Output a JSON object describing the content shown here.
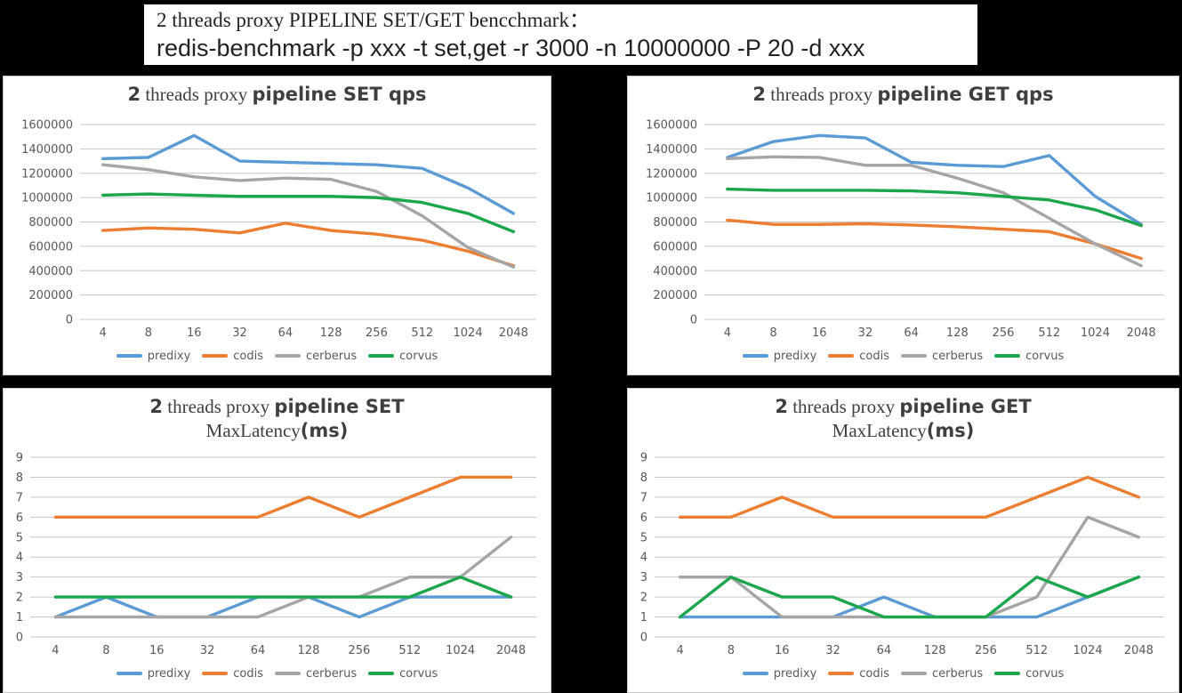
{
  "banner": {
    "line1": "2 threads proxy PIPELINE SET/GET bencchmark：",
    "line2": "redis-benchmark -p xxx -t set,get -r 3000 -n 10000000 -P 20 -d xxx"
  },
  "colors": {
    "predixy": "#5B9BD5",
    "codis": "#ED7D31",
    "cerberus": "#A5A5A5",
    "corvus": "#1CA64C",
    "grid": "#C6C6C6",
    "axis_text": "#595959",
    "title_text": "#3F3F3F"
  },
  "legend": [
    "predixy",
    "codis",
    "cerberus",
    "corvus"
  ],
  "chart_data": [
    {
      "type": "line",
      "title": {
        "num": "2",
        "serif": " threads proxy ",
        "bold": "pipeline SET qps"
      },
      "x": [
        "4",
        "8",
        "16",
        "32",
        "64",
        "128",
        "256",
        "512",
        "1024",
        "2048"
      ],
      "xlabel": "",
      "ylabel": "",
      "ylim": [
        0,
        1600000
      ],
      "yticks": [
        0,
        200000,
        400000,
        600000,
        800000,
        1000000,
        1200000,
        1400000,
        1600000
      ],
      "grid": true,
      "legend_position": "bottom",
      "series": [
        {
          "name": "predixy",
          "values": [
            1320000,
            1330000,
            1510000,
            1300000,
            1290000,
            1280000,
            1270000,
            1240000,
            1080000,
            870000
          ]
        },
        {
          "name": "codis",
          "values": [
            730000,
            750000,
            740000,
            710000,
            790000,
            730000,
            700000,
            650000,
            560000,
            440000
          ]
        },
        {
          "name": "cerberus",
          "values": [
            1270000,
            1230000,
            1170000,
            1140000,
            1160000,
            1150000,
            1050000,
            850000,
            590000,
            430000
          ]
        },
        {
          "name": "corvus",
          "values": [
            1020000,
            1030000,
            1020000,
            1010000,
            1010000,
            1010000,
            1000000,
            960000,
            870000,
            720000
          ]
        }
      ]
    },
    {
      "type": "line",
      "title": {
        "num": "2",
        "serif": " threads proxy ",
        "bold": "pipeline GET qps"
      },
      "x": [
        "4",
        "8",
        "16",
        "32",
        "64",
        "128",
        "256",
        "512",
        "1024",
        "2048"
      ],
      "xlabel": "",
      "ylabel": "",
      "ylim": [
        0,
        1600000
      ],
      "yticks": [
        0,
        200000,
        400000,
        600000,
        800000,
        1000000,
        1200000,
        1400000,
        1600000
      ],
      "grid": true,
      "legend_position": "bottom",
      "series": [
        {
          "name": "predixy",
          "values": [
            1330000,
            1460000,
            1510000,
            1490000,
            1290000,
            1265000,
            1255000,
            1345000,
            1010000,
            780000
          ]
        },
        {
          "name": "codis",
          "values": [
            815000,
            780000,
            780000,
            785000,
            775000,
            760000,
            740000,
            720000,
            620000,
            500000
          ]
        },
        {
          "name": "cerberus",
          "values": [
            1320000,
            1335000,
            1330000,
            1265000,
            1265000,
            1160000,
            1040000,
            830000,
            620000,
            440000
          ]
        },
        {
          "name": "corvus",
          "values": [
            1070000,
            1060000,
            1060000,
            1060000,
            1055000,
            1040000,
            1010000,
            980000,
            900000,
            770000
          ]
        }
      ]
    },
    {
      "type": "line",
      "title": {
        "num": "2",
        "serif": " threads proxy ",
        "bold": "pipeline SET"
      },
      "title_line2": {
        "serif": "MaxLatency",
        "bold": "(ms)"
      },
      "x": [
        "4",
        "8",
        "16",
        "32",
        "64",
        "128",
        "256",
        "512",
        "1024",
        "2048"
      ],
      "xlabel": "",
      "ylabel": "",
      "ylim": [
        0,
        9
      ],
      "yticks": [
        0,
        1,
        2,
        3,
        4,
        5,
        6,
        7,
        8,
        9
      ],
      "grid": true,
      "legend_position": "bottom",
      "series": [
        {
          "name": "predixy",
          "values": [
            1,
            2,
            1,
            1,
            2,
            2,
            1,
            2,
            2,
            2
          ]
        },
        {
          "name": "codis",
          "values": [
            6,
            6,
            6,
            6,
            6,
            7,
            6,
            7,
            8,
            8
          ]
        },
        {
          "name": "cerberus",
          "values": [
            1,
            1,
            1,
            1,
            1,
            2,
            2,
            3,
            3,
            5
          ]
        },
        {
          "name": "corvus",
          "values": [
            2,
            2,
            2,
            2,
            2,
            2,
            2,
            2,
            3,
            2
          ]
        }
      ]
    },
    {
      "type": "line",
      "title": {
        "num": "2",
        "serif": " threads proxy ",
        "bold": "pipeline GET"
      },
      "title_line2": {
        "serif": "MaxLatency",
        "bold": "(ms)"
      },
      "x": [
        "4",
        "8",
        "16",
        "32",
        "64",
        "128",
        "256",
        "512",
        "1024",
        "2048"
      ],
      "xlabel": "",
      "ylabel": "",
      "ylim": [
        0,
        9
      ],
      "yticks": [
        0,
        1,
        2,
        3,
        4,
        5,
        6,
        7,
        8,
        9
      ],
      "grid": true,
      "legend_position": "bottom",
      "series": [
        {
          "name": "predixy",
          "values": [
            1,
            1,
            1,
            1,
            2,
            1,
            1,
            1,
            2,
            3
          ]
        },
        {
          "name": "codis",
          "values": [
            6,
            6,
            7,
            6,
            6,
            6,
            6,
            7,
            8,
            7
          ]
        },
        {
          "name": "cerberus",
          "values": [
            3,
            3,
            1,
            1,
            1,
            1,
            1,
            2,
            6,
            5
          ]
        },
        {
          "name": "corvus",
          "values": [
            1,
            3,
            2,
            2,
            1,
            1,
            1,
            3,
            2,
            3
          ]
        }
      ]
    }
  ]
}
